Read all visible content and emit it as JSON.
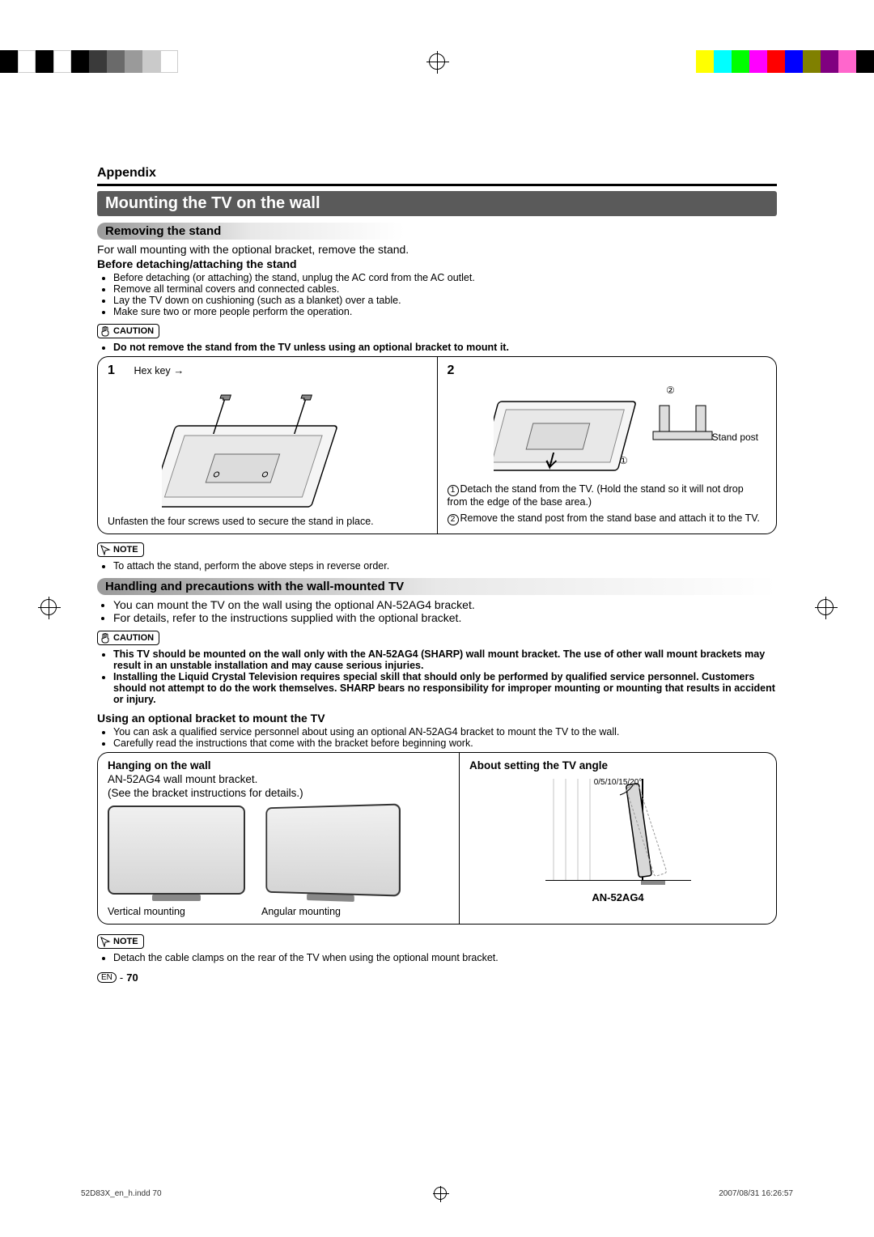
{
  "registration_colors": {
    "left": [
      "#000000",
      "#ffffff",
      "#000000",
      "#ffffff",
      "#000000",
      "#3a3a3a",
      "#6a6a6a",
      "#9a9a9a",
      "#cacaca",
      "#ffffff"
    ],
    "right": [
      "#ffff00",
      "#00ffff",
      "#00ff00",
      "#ff00ff",
      "#ff0000",
      "#0000ff",
      "#808000",
      "#800080",
      "#ff66cc",
      "#000000"
    ]
  },
  "header": {
    "appendix": "Appendix"
  },
  "title": "Mounting the TV on the wall",
  "removing_stand": {
    "heading": "Removing the stand",
    "intro": "For wall mounting with the optional bracket, remove the stand.",
    "before_title": "Before detaching/attaching the stand",
    "before_bullets": [
      "Before detaching (or attaching) the stand, unplug the AC cord from the AC outlet.",
      "Remove all terminal covers and connected cables.",
      "Lay the TV down on cushioning (such as a blanket) over a table.",
      "Make sure two or more people perform the operation."
    ],
    "caution_label": "CAUTION",
    "caution_bullet": "Do not remove the stand from the TV unless using an optional bracket to mount it.",
    "step1": {
      "num": "1",
      "hex_key": "Hex key",
      "caption": "Unfasten the four screws used to secure the stand in place."
    },
    "step2": {
      "num": "2",
      "stand_post": "Stand post",
      "line1": "Detach the stand from the TV. (Hold the stand so it will not drop from the edge of the base area.)",
      "line2": "Remove the stand post from the stand base and attach it to the TV."
    },
    "note_label": "NOTE",
    "note_bullet": "To attach the stand, perform the above steps in reverse order."
  },
  "handling": {
    "heading": "Handling and precautions with the wall-mounted TV",
    "bullets": [
      "You can mount the TV on the wall using the optional AN-52AG4 bracket.",
      "For details, refer to the instructions supplied with the optional bracket."
    ],
    "caution_label": "CAUTION",
    "caution_bullets": [
      "This TV should be mounted on the wall only with the AN-52AG4 (SHARP) wall mount bracket. The use of other wall mount brackets may result in an unstable installation and may cause serious injuries.",
      "Installing the Liquid Crystal Television requires special skill that should only be performed by qualified service personnel. Customers should not attempt to do the work themselves. SHARP bears no responsibility for improper mounting or mounting that results in accident or injury."
    ],
    "using_title": "Using an optional bracket to mount the TV",
    "using_bullets": [
      "You can ask a qualified service personnel about using an optional AN-52AG4 bracket to mount the TV to the wall.",
      "Carefully read the instructions that come with the bracket before beginning work."
    ]
  },
  "mounting": {
    "hanging_title": "Hanging on the wall",
    "hanging_line1": "AN-52AG4 wall mount bracket.",
    "hanging_line2": "(See the bracket instructions for details.)",
    "vertical_label": "Vertical mounting",
    "angular_label": "Angular mounting",
    "angle_title": "About setting the TV angle",
    "angle_degrees": "0/5/10/15/20°",
    "bracket_code": "AN-52AG4",
    "note_label": "NOTE",
    "note_bullet": "Detach the cable clamps on the rear of the TV when using the optional mount bracket."
  },
  "footer": {
    "en": "EN",
    "page": "70"
  },
  "print": {
    "file": "52D83X_en_h.indd   70",
    "timestamp": "2007/08/31   16:26:57"
  }
}
